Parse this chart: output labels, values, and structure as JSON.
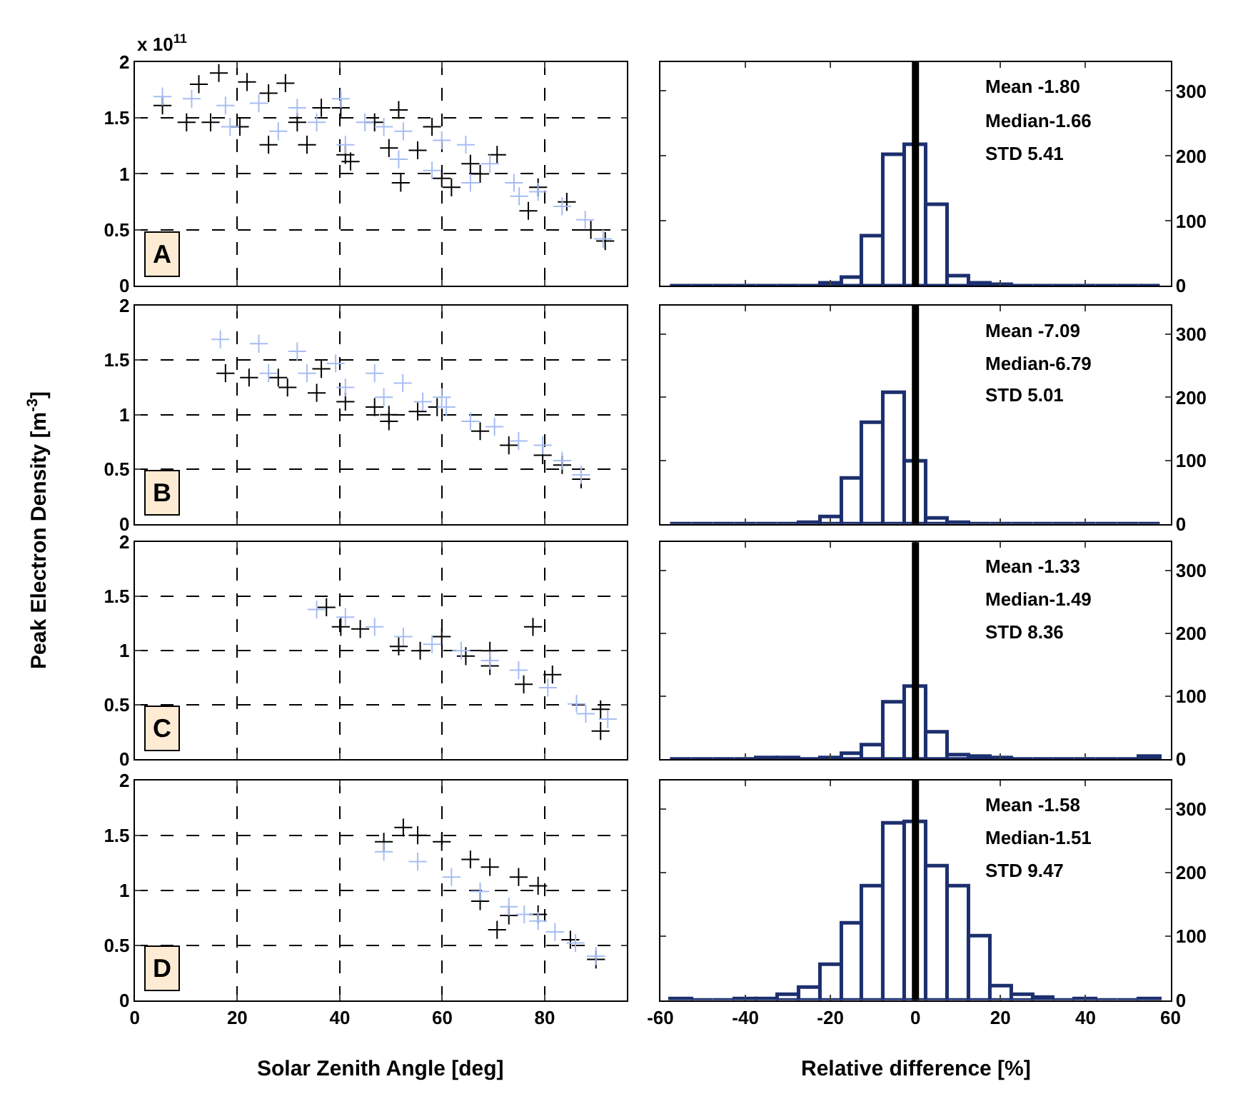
{
  "chart_data": [
    {
      "type": "scatter",
      "title": "A",
      "ylabel": "Peak Electron Density [m$^{-3}$]",
      "annotations": [
        "x 10$^{11}$"
      ],
      "marker": "cross",
      "grid": true,
      "tick_labels": "y",
      "xlim": [
        0,
        96
      ],
      "xticks": [
        0,
        20,
        40,
        60,
        80
      ],
      "ylim": [
        0,
        2
      ],
      "yticks": [
        0,
        0.5,
        1,
        1.5,
        2
      ],
      "series": [
        {
          "color": "#000000",
          "x": [
            5.4,
            12.5,
            16.4,
            10.1,
            14.8,
            21.9,
            29.4,
            26.1,
            20.5,
            26.1,
            33.6,
            41.1,
            42.1,
            40.2,
            51.5,
            49.6,
            51.9,
            59.9,
            61.8,
            58,
            70.7,
            76.8,
            78.7,
            84.3,
            89,
            91.8,
            31.7,
            36.4,
            46.8,
            55.2,
            65.5,
            67.4
          ],
          "values": [
            1.61,
            1.8,
            1.9,
            1.46,
            1.46,
            1.82,
            1.81,
            1.72,
            1.42,
            1.26,
            1.26,
            1.17,
            1.11,
            1.59,
            1.57,
            1.23,
            0.92,
            0.96,
            0.88,
            1.42,
            1.17,
            0.67,
            0.88,
            0.75,
            0.5,
            0.4,
            1.46,
            1.59,
            1.46,
            1.21,
            1.09,
            1.0
          ]
        },
        {
          "color": "#a6bdf2",
          "x": [
            5.4,
            11.1,
            17.7,
            24.2,
            31.7,
            40.2,
            18.6,
            28,
            41.1,
            44.9,
            52.4,
            59.9,
            64.6,
            69.3,
            51.5,
            58,
            65.5,
            74,
            78.7,
            75,
            83.4,
            87.9,
            91.4,
            35.5,
            48.6
          ],
          "values": [
            1.69,
            1.67,
            1.61,
            1.63,
            1.59,
            1.67,
            1.42,
            1.38,
            1.26,
            1.46,
            1.38,
            1.3,
            1.26,
            1.09,
            1.13,
            1.03,
            0.92,
            0.92,
            0.84,
            0.8,
            0.71,
            0.59,
            0.42,
            1.46,
            1.42
          ]
        }
      ]
    },
    {
      "type": "histogram",
      "annotations": [
        "Mean -1.80",
        "Median-1.66",
        "STD 5.41"
      ],
      "color": "#1c2f6e",
      "grid": false,
      "tick_labels": "y",
      "xlim": [
        -60,
        60
      ],
      "xticks": [
        -60,
        -40,
        -20,
        0,
        20,
        40,
        60
      ],
      "ylim": [
        0,
        345
      ],
      "yticks": [
        0,
        100,
        200,
        300
      ],
      "ref_lines": [
        {
          "axis": "x",
          "value": 0,
          "color": "#000000"
        }
      ],
      "bins": [
        -57.5,
        -52.5,
        -47.5,
        -42.5,
        -37.5,
        -32.5,
        -27.5,
        -22.5,
        -17.5,
        -12.5,
        -7.5,
        -2.5,
        2.5,
        7.5,
        12.5,
        17.5,
        22.5,
        27.5,
        32.5,
        37.5,
        42.5,
        47.5,
        52.5,
        57.5
      ],
      "values": [
        0,
        0,
        0,
        0,
        0,
        0,
        0,
        5,
        14,
        77,
        202,
        218,
        125,
        15,
        5,
        2,
        0,
        0,
        0,
        0,
        0,
        0,
        0
      ]
    },
    {
      "type": "scatter",
      "title": "B",
      "marker": "cross",
      "grid": true,
      "tick_labels": "y",
      "xlim": [
        0,
        96
      ],
      "xticks": [
        0,
        20,
        40,
        60,
        80
      ],
      "ylim": [
        0,
        2
      ],
      "yticks": [
        0,
        0.5,
        1,
        1.5,
        2
      ],
      "series": [
        {
          "color": "#000000",
          "x": [
            17.7,
            22.3,
            28,
            29.8,
            35.5,
            41.1,
            46.8,
            49.6,
            49.6,
            55.2,
            59,
            67.4,
            73,
            79.6,
            83.4,
            87.1,
            36.4
          ],
          "values": [
            1.38,
            1.34,
            1.34,
            1.25,
            1.2,
            1.12,
            1.07,
            1.0,
            0.94,
            1.03,
            1.07,
            0.85,
            0.72,
            0.63,
            0.54,
            0.41,
            1.42
          ]
        },
        {
          "color": "#a6bdf2",
          "x": [
            16.7,
            24.2,
            31.7,
            39.2,
            46.8,
            52.3,
            59.9,
            33.6,
            26.1,
            41.1,
            48.6,
            56.2,
            65.5,
            70.2,
            74.9,
            79.6,
            83.4,
            87.1,
            60.8
          ],
          "values": [
            1.69,
            1.65,
            1.58,
            1.47,
            1.38,
            1.29,
            1.16,
            1.38,
            1.38,
            1.25,
            1.16,
            1.12,
            0.94,
            0.89,
            0.76,
            0.72,
            0.58,
            0.45,
            1.07
          ]
        }
      ]
    },
    {
      "type": "histogram",
      "annotations": [
        "Mean -7.09",
        "Median-6.79",
        "STD 5.01"
      ],
      "color": "#1c2f6e",
      "grid": false,
      "tick_labels": "y",
      "xlim": [
        -60,
        60
      ],
      "xticks": [
        -60,
        -40,
        -20,
        0,
        20,
        40,
        60
      ],
      "ylim": [
        0,
        345
      ],
      "yticks": [
        0,
        100,
        200,
        300
      ],
      "ref_lines": [
        {
          "axis": "x",
          "value": 0,
          "color": "#000000"
        }
      ],
      "bins": [
        -57.5,
        -52.5,
        -47.5,
        -42.5,
        -37.5,
        -32.5,
        -27.5,
        -22.5,
        -17.5,
        -12.5,
        -7.5,
        -2.5,
        2.5,
        7.5,
        12.5,
        17.5,
        22.5,
        27.5,
        32.5,
        37.5,
        42.5,
        47.5,
        52.5,
        57.5
      ],
      "values": [
        0,
        0,
        0,
        0,
        0,
        0,
        2,
        12,
        72,
        160,
        208,
        100,
        10,
        2,
        0,
        0,
        0,
        0,
        0,
        0,
        0,
        0,
        0
      ]
    },
    {
      "type": "scatter",
      "title": "C",
      "marker": "cross",
      "grid": true,
      "tick_labels": "y",
      "xlim": [
        0,
        96
      ],
      "xticks": [
        0,
        20,
        40,
        60,
        80
      ],
      "ylim": [
        0,
        2
      ],
      "yticks": [
        0,
        0.5,
        1,
        1.5,
        2
      ],
      "series": [
        {
          "color": "#000000",
          "x": [
            37.4,
            40.2,
            44,
            51.5,
            55.7,
            59.9,
            69.3,
            69.3,
            77.7,
            81.5,
            90.9,
            90.9,
            64.6,
            75.9
          ],
          "values": [
            1.4,
            1.22,
            1.2,
            1.04,
            1.0,
            1.13,
            1.0,
            0.86,
            1.22,
            0.78,
            0.46,
            0.26,
            0.95,
            0.69
          ]
        },
        {
          "color": "#a6bdf2",
          "x": [
            35.5,
            41.1,
            46.8,
            52.4,
            58,
            63.7,
            69.3,
            74.9,
            80.6,
            86.2,
            92.3,
            88
          ],
          "values": [
            1.38,
            1.31,
            1.22,
            1.13,
            1.06,
            1.0,
            0.91,
            0.82,
            0.66,
            0.51,
            0.37,
            0.42
          ]
        }
      ]
    },
    {
      "type": "histogram",
      "annotations": [
        "Mean -1.33",
        "Median-1.49",
        "STD 8.36"
      ],
      "color": "#1c2f6e",
      "grid": false,
      "tick_labels": "y",
      "xlim": [
        -60,
        60
      ],
      "xticks": [
        -60,
        -40,
        -20,
        0,
        20,
        40,
        60
      ],
      "ylim": [
        0,
        345
      ],
      "yticks": [
        0,
        100,
        200,
        300
      ],
      "ref_lines": [
        {
          "axis": "x",
          "value": 0,
          "color": "#000000"
        }
      ],
      "bins": [
        -57.5,
        -52.5,
        -47.5,
        -42.5,
        -37.5,
        -32.5,
        -27.5,
        -22.5,
        -17.5,
        -12.5,
        -7.5,
        -2.5,
        2.5,
        7.5,
        12.5,
        17.5,
        22.5,
        27.5,
        32.5,
        37.5,
        42.5,
        47.5,
        52.5,
        57.5
      ],
      "values": [
        0,
        0,
        0,
        0,
        3,
        3,
        0,
        3,
        8,
        22,
        91,
        115,
        43,
        7,
        5,
        3,
        0,
        0,
        0,
        0,
        0,
        0,
        4
      ]
    },
    {
      "type": "scatter",
      "title": "D",
      "xlabel": "Solar Zenith Angle [deg]",
      "marker": "cross",
      "grid": true,
      "xlim": [
        0,
        96
      ],
      "xticks": [
        0,
        20,
        40,
        60,
        80
      ],
      "ylim": [
        0,
        2
      ],
      "yticks": [
        0,
        0.5,
        1,
        1.5,
        2
      ],
      "series": [
        {
          "color": "#000000",
          "x": [
            48.6,
            52.4,
            55.2,
            59.9,
            65.5,
            69.3,
            74.9,
            78.7,
            67.4,
            73,
            70.7,
            78.7,
            85,
            90
          ],
          "values": [
            1.44,
            1.57,
            1.5,
            1.44,
            1.28,
            1.21,
            1.12,
            1.04,
            0.9,
            0.77,
            0.64,
            0.78,
            0.55,
            0.37
          ]
        },
        {
          "color": "#a6bdf2",
          "x": [
            48.6,
            55.2,
            61.8,
            67.4,
            73,
            78.7,
            82,
            86,
            90,
            76
          ],
          "values": [
            1.35,
            1.26,
            1.12,
            0.99,
            0.85,
            0.72,
            0.62,
            0.52,
            0.4,
            0.78
          ]
        }
      ]
    },
    {
      "type": "histogram",
      "xlabel": "Relative difference [%]",
      "annotations": [
        "Mean -1.58",
        "Median-1.51",
        "STD 9.47"
      ],
      "color": "#1c2f6e",
      "grid": false,
      "xlim": [
        -60,
        60
      ],
      "xticks": [
        -60,
        -40,
        -20,
        0,
        20,
        40,
        60
      ],
      "ylim": [
        0,
        345
      ],
      "yticks": [
        0,
        100,
        200,
        300
      ],
      "ref_lines": [
        {
          "axis": "x",
          "value": 0,
          "color": "#000000"
        }
      ],
      "bins": [
        -57.5,
        -52.5,
        -47.5,
        -42.5,
        -37.5,
        -32.5,
        -27.5,
        -22.5,
        -17.5,
        -12.5,
        -7.5,
        -2.5,
        2.5,
        7.5,
        12.5,
        17.5,
        22.5,
        27.5,
        32.5,
        37.5,
        42.5,
        47.5,
        52.5,
        57.5
      ],
      "values": [
        2,
        0,
        0,
        2,
        2,
        8,
        20,
        55,
        122,
        180,
        278,
        280,
        210,
        180,
        100,
        23,
        8,
        4,
        0,
        2,
        0,
        0,
        2
      ]
    }
  ]
}
